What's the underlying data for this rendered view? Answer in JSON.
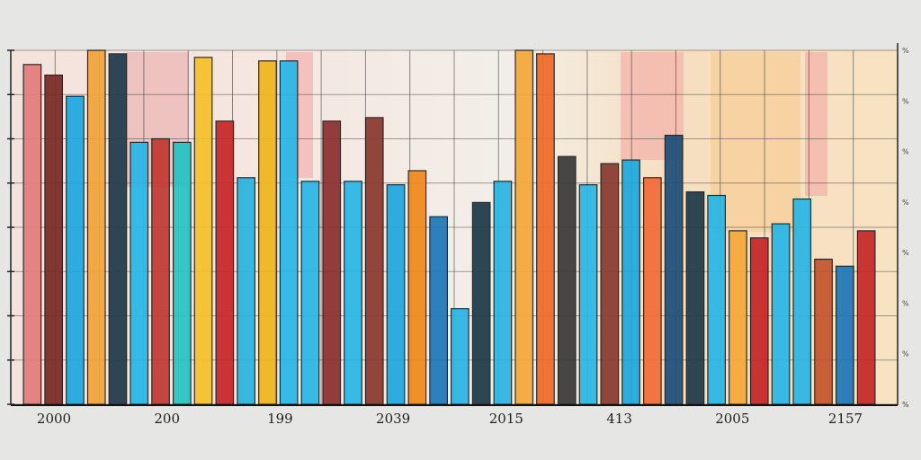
{
  "chart_data": {
    "type": "bar",
    "title": "",
    "xlabel": "",
    "ylabel": "",
    "ylim": [
      0,
      100
    ],
    "grid": true,
    "legend": "none",
    "x_tick_labels": [
      "2000",
      "200",
      "199",
      "2039",
      "2015",
      "413",
      "2005",
      "2157"
    ],
    "right_tick_labels": [
      "%",
      "%",
      "%",
      "%",
      "%",
      "%",
      "%",
      "%"
    ],
    "bars": [
      {
        "value": 96,
        "color": "#e27c7c"
      },
      {
        "value": 93,
        "color": "#7a2a26"
      },
      {
        "value": 87,
        "color": "#1ea8e0"
      },
      {
        "value": 100,
        "color": "#f3a43b"
      },
      {
        "value": 99,
        "color": "#1f3a4a"
      },
      {
        "value": 74,
        "color": "#29b7e6"
      },
      {
        "value": 75,
        "color": "#c23a34"
      },
      {
        "value": 74,
        "color": "#27c4c4"
      },
      {
        "value": 98,
        "color": "#f5c22a"
      },
      {
        "value": 80,
        "color": "#c62828"
      },
      {
        "value": 64,
        "color": "#2ab4e2"
      },
      {
        "value": 97,
        "color": "#f0b51e"
      },
      {
        "value": 97,
        "color": "#29b7e6"
      },
      {
        "value": 63,
        "color": "#29b7e6"
      },
      {
        "value": 80,
        "color": "#8b2f2f"
      },
      {
        "value": 63,
        "color": "#29b7e6"
      },
      {
        "value": 81,
        "color": "#8b3a2f"
      },
      {
        "value": 62,
        "color": "#1ea8e0"
      },
      {
        "value": 66,
        "color": "#f08a1a"
      },
      {
        "value": 53,
        "color": "#1f78b8"
      },
      {
        "value": 27,
        "color": "#2ab4e2"
      },
      {
        "value": 57,
        "color": "#1f3a4a"
      },
      {
        "value": 63,
        "color": "#2ab4e2"
      },
      {
        "value": 100,
        "color": "#f5a93b"
      },
      {
        "value": 99,
        "color": "#f06a2a"
      },
      {
        "value": 70,
        "color": "#3a3a3a"
      },
      {
        "value": 62,
        "color": "#29b7e6"
      },
      {
        "value": 68,
        "color": "#8b3a2f"
      },
      {
        "value": 69,
        "color": "#1ea8e0"
      },
      {
        "value": 64,
        "color": "#f36b3a"
      },
      {
        "value": 76,
        "color": "#1f4f7a"
      },
      {
        "value": 60,
        "color": "#1f3a4a"
      },
      {
        "value": 59,
        "color": "#29b7e6"
      },
      {
        "value": 49,
        "color": "#f5a93b"
      },
      {
        "value": 47,
        "color": "#c62828"
      },
      {
        "value": 51,
        "color": "#29b7e6"
      },
      {
        "value": 58,
        "color": "#29b7e6"
      },
      {
        "value": 41,
        "color": "#c2572f"
      },
      {
        "value": 39,
        "color": "#1f78b8"
      },
      {
        "value": 49,
        "color": "#c62828"
      }
    ]
  }
}
